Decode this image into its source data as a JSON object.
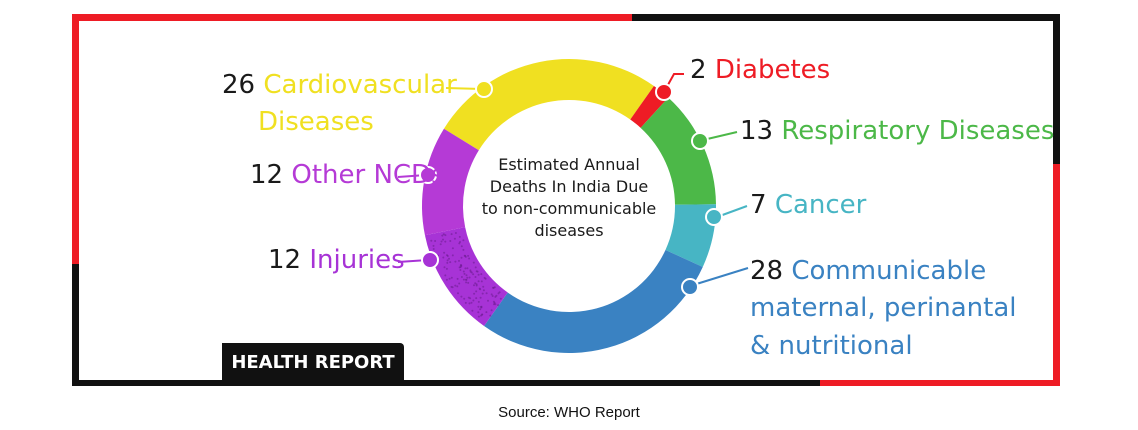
{
  "chart_data": {
    "type": "pie",
    "style": "donut",
    "title": "Estimated Annual Deaths In India Due to non-communicable diseases",
    "title_lines": [
      "Estimated Annual",
      "Deaths In India Due",
      "to non-communicable",
      "diseases"
    ],
    "categories": [
      "Cardiovascular Diseases",
      "Diabetes",
      "Respiratory Diseases",
      "Cancer",
      "Communicable maternal, perinantal & nutritional",
      "Injuries",
      "Other NCDs"
    ],
    "values": [
      26,
      2,
      13,
      7,
      28,
      12,
      12
    ],
    "colors": [
      "#f0e021",
      "#ee1c25",
      "#4cb848",
      "#47b5c4",
      "#3a82c2",
      "#a733d6",
      "#b53ad6"
    ],
    "legend_placement": "around-chart"
  },
  "labels": {
    "cardio": {
      "value": "26",
      "name1": "Cardiovascular",
      "name2": "Diseases"
    },
    "diabetes": {
      "value": "2",
      "name": "Diabetes"
    },
    "respiratory": {
      "value": "13",
      "name": "Respiratory Diseases"
    },
    "cancer": {
      "value": "7",
      "name": "Cancer"
    },
    "communicable": {
      "value": "28",
      "name1": "Communicable",
      "name2": "maternal, perinantal",
      "name3": "& nutritional"
    },
    "injuries": {
      "value": "12",
      "name": "Injuries"
    },
    "other": {
      "value": "12",
      "name": "Other NCDs"
    }
  },
  "badge": "HEALTH REPORT",
  "source": "Source: WHO Report",
  "colors": {
    "frame_red": "#ee1c25",
    "frame_black": "#111111"
  }
}
